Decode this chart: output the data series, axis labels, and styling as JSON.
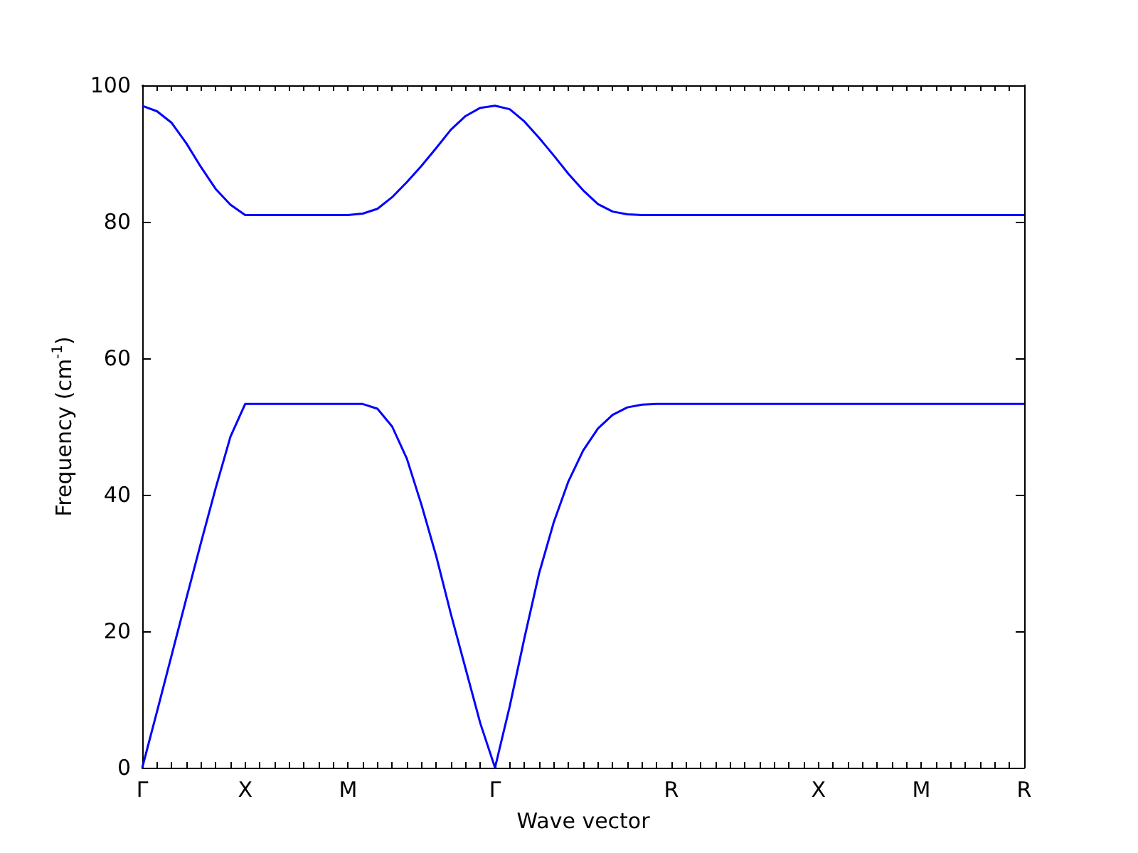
{
  "chart_data": {
    "type": "line",
    "xlabel": "Wave vector",
    "ylabel": "Frequency (cm$^{-1}$)",
    "categories": [
      "Γ",
      null,
      null,
      null,
      null,
      null,
      null,
      "X",
      null,
      null,
      null,
      null,
      null,
      null,
      "M",
      null,
      null,
      null,
      null,
      null,
      null,
      null,
      null,
      null,
      "Γ",
      null,
      null,
      null,
      null,
      null,
      null,
      null,
      null,
      null,
      null,
      null,
      "R",
      null,
      null,
      null,
      null,
      null,
      null,
      null,
      null,
      null,
      "X",
      null,
      null,
      null,
      null,
      null,
      null,
      "M",
      null,
      null,
      null,
      null,
      null,
      null,
      "R"
    ],
    "ylim": [
      0,
      100
    ],
    "yticks": [
      0,
      20,
      40,
      60,
      80,
      100
    ],
    "series": [
      {
        "color": "#0000ff",
        "values": [
          97,
          96.2,
          94.5,
          91.5,
          88,
          84.8,
          82.5,
          81,
          81,
          81,
          81,
          81,
          81,
          81,
          81,
          81.2,
          81.9,
          83.6,
          85.8,
          88.2,
          90.8,
          93.5,
          95.5,
          96.7,
          97,
          96.5,
          94.7,
          92.3,
          89.7,
          87,
          84.6,
          82.6,
          81.5,
          81.1,
          81,
          81,
          81,
          81,
          81,
          81,
          81,
          81,
          81,
          81,
          81,
          81,
          81,
          81,
          81,
          81,
          81,
          81,
          81,
          81,
          81,
          81,
          81,
          81,
          81,
          81,
          81
        ]
      },
      {
        "color": "#0000ff",
        "values": [
          0,
          8.2,
          16.5,
          24.8,
          33,
          41,
          48.5,
          53.3,
          53.3,
          53.3,
          53.3,
          53.3,
          53.3,
          53.3,
          53.3,
          53.3,
          52.6,
          50,
          45.3,
          38.5,
          31,
          22.5,
          14.5,
          6.5,
          0,
          9,
          19,
          28.5,
          36,
          42,
          46.5,
          49.7,
          51.7,
          52.8,
          53.2,
          53.3,
          53.3,
          53.3,
          53.3,
          53.3,
          53.3,
          53.3,
          53.3,
          53.3,
          53.3,
          53.3,
          53.3,
          53.3,
          53.3,
          53.3,
          53.3,
          53.3,
          53.3,
          53.3,
          53.3,
          53.3,
          53.3,
          53.3,
          53.3,
          53.3,
          53.3
        ]
      }
    ]
  }
}
